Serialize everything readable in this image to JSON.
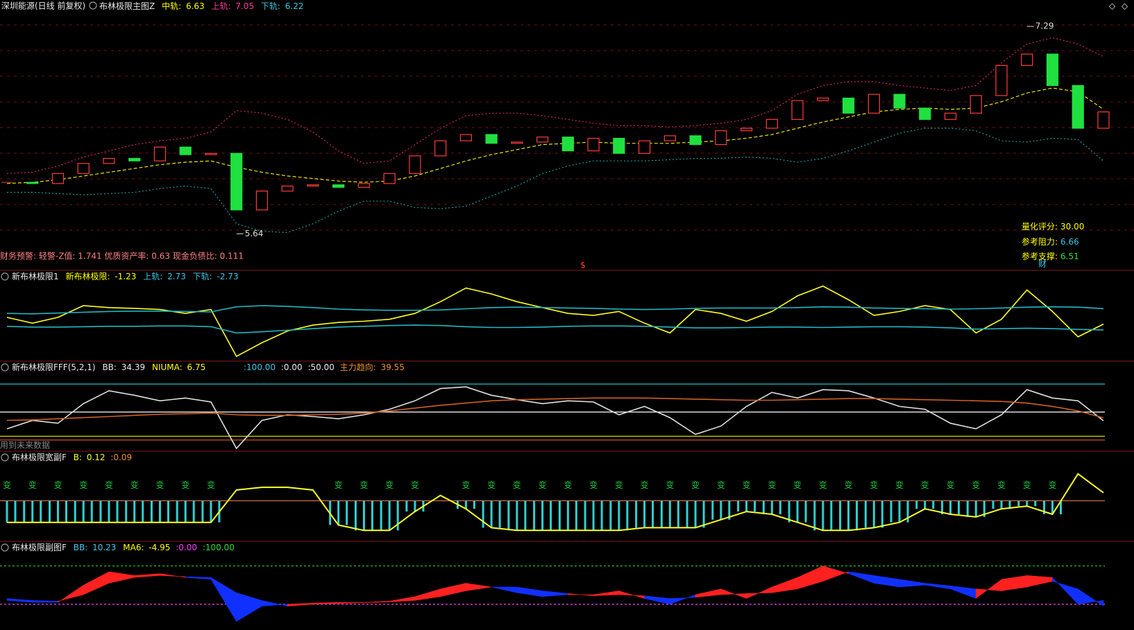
{
  "chart_data": [
    {
      "type": "candlestick",
      "title": "布林极限主图Z",
      "subtitle": "深圳能源(日线 前复权)",
      "up_color": "#ff3c3c",
      "down_color": "#20e040",
      "ylim": [
        5.46,
        7.39
      ],
      "closes": [
        6.05,
        6.04,
        6.12,
        6.2,
        6.24,
        6.22,
        6.33,
        6.27,
        6.28,
        5.83,
        5.98,
        6.02,
        6.03,
        6.01,
        6.04,
        6.12,
        6.26,
        6.38,
        6.43,
        6.36,
        6.37,
        6.41,
        6.3,
        6.4,
        6.28,
        6.38,
        6.42,
        6.35,
        6.46,
        6.48,
        6.55,
        6.7,
        6.72,
        6.6,
        6.75,
        6.64,
        6.55,
        6.6,
        6.74,
        6.98,
        7.07,
        6.82,
        6.48,
        6.61
      ],
      "series": [
        {
          "name": "中轨:",
          "color": "#e8e800",
          "line_style": "dashed",
          "values": [
            6.04,
            6.05,
            6.07,
            6.1,
            6.13,
            6.16,
            6.19,
            6.21,
            6.22,
            6.17,
            6.13,
            6.1,
            6.08,
            6.06,
            6.05,
            6.06,
            6.1,
            6.16,
            6.22,
            6.27,
            6.31,
            6.35,
            6.36,
            6.37,
            6.36,
            6.36,
            6.36,
            6.37,
            6.38,
            6.4,
            6.43,
            6.48,
            6.53,
            6.57,
            6.61,
            6.63,
            6.64,
            6.63,
            6.64,
            6.69,
            6.76,
            6.8,
            6.77,
            6.63
          ]
        },
        {
          "name": "上轨:",
          "color": "#d02860",
          "line_style": "dotted",
          "values": [
            6.12,
            6.13,
            6.18,
            6.25,
            6.3,
            6.35,
            6.38,
            6.4,
            6.45,
            6.62,
            6.6,
            6.55,
            6.45,
            6.3,
            6.2,
            6.22,
            6.35,
            6.48,
            6.58,
            6.6,
            6.6,
            6.58,
            6.55,
            6.52,
            6.5,
            6.5,
            6.49,
            6.5,
            6.52,
            6.55,
            6.62,
            6.75,
            6.82,
            6.85,
            6.85,
            6.82,
            6.8,
            6.78,
            6.82,
            7.0,
            7.15,
            7.2,
            7.15,
            7.05
          ]
        },
        {
          "name": "下轨:",
          "color": "#1f9a9a",
          "line_style": "dotted",
          "values": [
            5.97,
            5.97,
            5.96,
            5.95,
            5.96,
            5.97,
            6.0,
            6.02,
            6.0,
            5.72,
            5.66,
            5.65,
            5.72,
            5.82,
            5.9,
            5.9,
            5.85,
            5.84,
            5.86,
            5.94,
            6.02,
            6.12,
            6.18,
            6.22,
            6.22,
            6.22,
            6.23,
            6.24,
            6.24,
            6.25,
            6.24,
            6.21,
            6.24,
            6.3,
            6.37,
            6.44,
            6.48,
            6.48,
            6.46,
            6.38,
            6.37,
            6.4,
            6.39,
            6.22
          ]
        }
      ],
      "high": 7.29,
      "low": 5.64,
      "warning": "财务预警: 轻警-Z值: 1.741 优质资产率: 0.63 现金负债比: 0.111",
      "marker_s": "$",
      "marker_cai": "财",
      "info": [
        {
          "label": "量化评分:",
          "value": "30.00"
        },
        {
          "label": "参考阻力:",
          "value": "6.66"
        },
        {
          "label": "参考支撑:",
          "value": "6.51"
        }
      ]
    },
    {
      "type": "line",
      "title": "新布林极限1",
      "ylim": [
        -10,
        9
      ],
      "series": [
        {
          "name": "新布林极限:",
          "color": "#ffff20",
          "values": [
            0.5,
            -1,
            0.5,
            3.5,
            3,
            2.8,
            2.5,
            1.5,
            2.5,
            -9.5,
            -6,
            -3,
            -1.5,
            -0.8,
            -0.5,
            0,
            1.5,
            4.5,
            8,
            6.5,
            4.5,
            3,
            1.5,
            1,
            2,
            -1,
            -3.5,
            2.5,
            1.5,
            -0.5,
            2,
            6,
            8.5,
            5,
            1,
            2,
            3.5,
            2.5,
            -3.5,
            0,
            7.5,
            2,
            -4.5,
            -1.23
          ]
        },
        {
          "name": "上轨:",
          "color": "#20b8c0",
          "values": [
            1.5,
            1.4,
            1.6,
            1.8,
            2.0,
            2.1,
            2.1,
            2.0,
            1.9,
            3.2,
            3.5,
            3.3,
            3.0,
            2.6,
            2.4,
            2.3,
            2.3,
            2.4,
            2.7,
            3.0,
            3.1,
            3.0,
            2.9,
            2.8,
            2.6,
            2.5,
            2.6,
            2.8,
            2.9,
            2.9,
            2.9,
            3.0,
            3.2,
            3.1,
            2.9,
            2.8,
            2.7,
            2.6,
            2.7,
            2.9,
            3.1,
            3.2,
            3.1,
            2.73
          ]
        },
        {
          "name": "下轨:",
          "color": "#20b8c0",
          "values": [
            -1.8,
            -2.0,
            -2.0,
            -1.9,
            -1.8,
            -1.8,
            -1.7,
            -1.7,
            -1.9,
            -3.5,
            -3.2,
            -2.8,
            -2.4,
            -2.0,
            -1.8,
            -1.6,
            -1.5,
            -1.6,
            -1.9,
            -2.1,
            -2.1,
            -2.0,
            -1.8,
            -1.7,
            -1.7,
            -1.8,
            -2.0,
            -2.2,
            -2.2,
            -2.1,
            -2.0,
            -2.0,
            -2.1,
            -2.0,
            -1.9,
            -1.9,
            -2.0,
            -2.2,
            -2.5,
            -2.4,
            -2.3,
            -2.4,
            -2.6,
            -2.73
          ]
        }
      ]
    },
    {
      "type": "line",
      "title": "新布林极限FFF(5,2,1)",
      "ylim": [
        -15,
        115
      ],
      "note": "用到未来数据",
      "series": [
        {
          "name": "BB:",
          "color": "#e0e0e0",
          "values": [
            20,
            35,
            30,
            65,
            88,
            80,
            70,
            75,
            68,
            -15,
            35,
            45,
            42,
            38,
            45,
            55,
            70,
            92,
            95,
            80,
            72,
            65,
            70,
            68,
            45,
            60,
            40,
            10,
            25,
            60,
            85,
            75,
            90,
            88,
            75,
            60,
            55,
            30,
            20,
            45,
            90,
            75,
            70,
            34.39
          ]
        },
        {
          "name": "主力趋向:",
          "color": "#d06020",
          "values": [
            35,
            36,
            38,
            40,
            42,
            44,
            46,
            47,
            48,
            45,
            44,
            44,
            45,
            46,
            48,
            52,
            57,
            62,
            66,
            70,
            72,
            73,
            74,
            75,
            75,
            75,
            74,
            73,
            72,
            71,
            71,
            72,
            73,
            74,
            74,
            73,
            72,
            71,
            70,
            69,
            66,
            60,
            52,
            39.55
          ]
        }
      ],
      "niuma": {
        "name": "NIUMA:",
        "value": 6.75,
        "color": "#e8e800"
      },
      "reference_lines": [
        {
          "value": 100,
          "label": ":100.00",
          "color": "#20c0c0"
        },
        {
          "value": 0,
          "label": ":0.00",
          "color": "#d05020"
        },
        {
          "value": 50,
          "label": ":50.00",
          "color": "#ffffff"
        }
      ]
    },
    {
      "type": "bar",
      "title": "布林极限宽副F",
      "ylim": [
        -0.05,
        0.22
      ],
      "bar_color": "#30d0d0",
      "change_marker": "变",
      "change_color": "#20c040",
      "series": [
        {
          "name": "B:",
          "color": "#ffff20",
          "values": [
            0.01,
            0.01,
            0.01,
            0.01,
            0.01,
            0.01,
            0.01,
            0.01,
            0.01,
            0.13,
            0.14,
            0.14,
            0.13,
            0.0,
            -0.02,
            -0.02,
            0.05,
            0.11,
            0.06,
            -0.01,
            -0.02,
            -0.02,
            -0.02,
            -0.02,
            -0.02,
            -0.01,
            -0.01,
            -0.01,
            0.02,
            0.05,
            0.04,
            0.01,
            -0.02,
            -0.02,
            -0.01,
            0.01,
            0.06,
            0.04,
            0.03,
            0.06,
            0.07,
            0.04,
            0.19,
            0.12
          ]
        }
      ],
      "reference_lines": [
        {
          "value": 0.09,
          "label": ":0.09",
          "color": "#e07050"
        }
      ]
    },
    {
      "type": "area",
      "title": "布林极限副图F",
      "ylim": [
        -60,
        130
      ],
      "up_color": "#ff2020",
      "down_color": "#1030ff",
      "series": [
        {
          "name": "BB:",
          "color": "#ff2020",
          "values": [
            10,
            5,
            5,
            50,
            85,
            75,
            80,
            70,
            65,
            -45,
            -5,
            0,
            3,
            5,
            5,
            8,
            20,
            40,
            55,
            45,
            30,
            20,
            25,
            25,
            35,
            15,
            0,
            25,
            40,
            15,
            45,
            70,
            100,
            80,
            55,
            45,
            50,
            40,
            15,
            65,
            75,
            70,
            0,
            10.23
          ]
        },
        {
          "name": "MA6:",
          "color": "#1030ff",
          "values": [
            15,
            10,
            8,
            25,
            55,
            70,
            75,
            72,
            70,
            30,
            10,
            -5,
            0,
            2,
            4,
            6,
            10,
            20,
            35,
            45,
            45,
            35,
            28,
            22,
            25,
            22,
            15,
            18,
            25,
            28,
            30,
            40,
            60,
            85,
            75,
            65,
            55,
            48,
            40,
            35,
            45,
            60,
            40,
            -4.95
          ]
        }
      ],
      "reference_lines": [
        {
          "value": 0,
          "label": ":0.00",
          "color": "#ff40ff"
        },
        {
          "value": 100,
          "label": ":100.00",
          "color": "#20d020"
        }
      ]
    }
  ]
}
